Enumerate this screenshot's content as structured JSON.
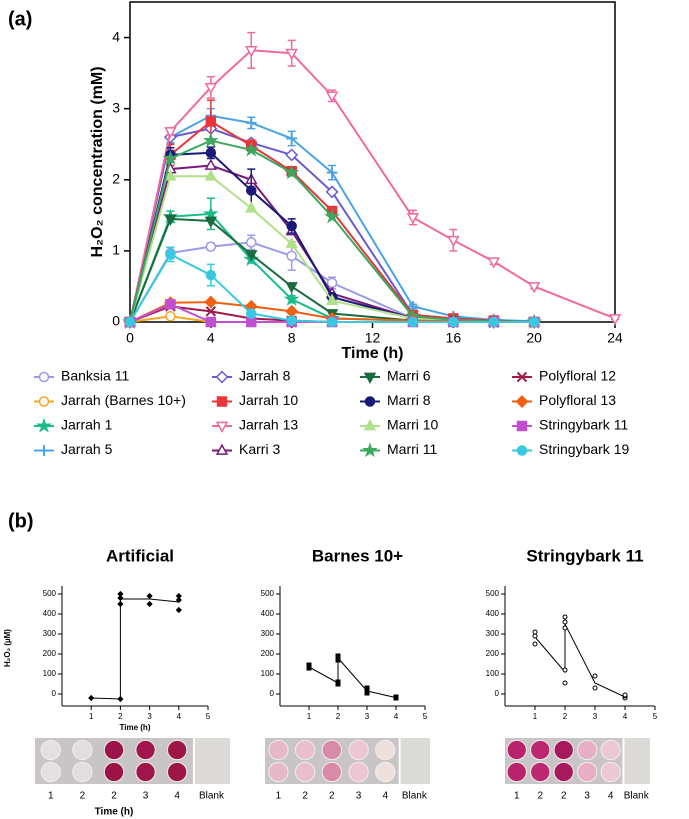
{
  "panel_labels": [
    "(a)",
    "(b)"
  ],
  "chart_data": [
    {
      "type": "line",
      "xlabel": "Time  (h)",
      "ylabel": "H₂O₂ concentration (mM)",
      "x": [
        0,
        2,
        4,
        6,
        8,
        10,
        14,
        16,
        18,
        20,
        24
      ],
      "xlim": [
        0,
        24
      ],
      "xticks": [
        0,
        4,
        8,
        12,
        16,
        20,
        24
      ],
      "ylim": [
        0,
        4.5
      ],
      "yticks": [
        0,
        1,
        2,
        3,
        4
      ],
      "series": [
        {
          "name": "Banksia 11",
          "color": "#9b9be8",
          "marker": "circle-open",
          "values": [
            0,
            0.97,
            1.06,
            1.12,
            0.93,
            0.55,
            0.05,
            0.02,
            0.01,
            0,
            null
          ],
          "errors": [
            0,
            0.08,
            0.05,
            0.1,
            0.2,
            0.08,
            0.02,
            0.01,
            0,
            0,
            null
          ]
        },
        {
          "name": "Jarrah (Barnes 10+)",
          "color": "#f5a623",
          "marker": "circle-open",
          "values": [
            0,
            0.08,
            0,
            0,
            0,
            0,
            0,
            0,
            0,
            0,
            null
          ]
        },
        {
          "name": "Jarrah 1",
          "color": "#1abc8c",
          "marker": "star",
          "values": [
            0,
            1.48,
            1.52,
            0.88,
            0.32,
            0.05,
            0.02,
            0.01,
            0,
            0,
            null
          ],
          "errors": [
            0,
            0.08,
            0.22,
            0.05,
            0.05,
            0.02,
            0,
            0,
            0,
            0,
            null
          ]
        },
        {
          "name": "Jarrah 5",
          "color": "#4aa3e8",
          "marker": "plus",
          "values": [
            0,
            2.6,
            2.9,
            2.8,
            2.58,
            2.1,
            0.22,
            0.08,
            0.03,
            0.01,
            null
          ],
          "errors": [
            0,
            0.08,
            0.1,
            0.08,
            0.1,
            0.1,
            0.03,
            0.02,
            0.01,
            0,
            null
          ]
        },
        {
          "name": "Jarrah 8",
          "color": "#6a5acd",
          "marker": "diamond-open",
          "values": [
            0,
            2.6,
            2.72,
            2.52,
            2.35,
            1.83,
            0.1,
            0.05,
            0.02,
            0,
            null
          ]
        },
        {
          "name": "Jarrah 10",
          "color": "#e8353a",
          "marker": "square",
          "values": [
            0,
            2.35,
            2.82,
            2.48,
            2.12,
            1.56,
            0.1,
            0.05,
            0.02,
            0,
            null
          ],
          "errors": [
            0,
            0.15,
            0.3,
            0.08,
            0.05,
            0.05,
            0.02,
            0.01,
            0,
            0,
            null
          ]
        },
        {
          "name": "Jarrah 13",
          "color": "#f06aa0",
          "marker": "triangle-down-open",
          "values": [
            0,
            2.68,
            3.3,
            3.82,
            3.78,
            3.18,
            1.47,
            1.15,
            0.85,
            0.5,
            0.05
          ],
          "errors": [
            0,
            0.05,
            0.15,
            0.25,
            0.18,
            0.08,
            0.1,
            0.15,
            0.04,
            0.03,
            0.01
          ]
        },
        {
          "name": "Karri 3",
          "color": "#7a1a7a",
          "marker": "triangle-up-open",
          "values": [
            0,
            2.15,
            2.2,
            2.0,
            1.28,
            0.4,
            0.05,
            0.02,
            0,
            0,
            null
          ]
        },
        {
          "name": "Marri 6",
          "color": "#1a6b40",
          "marker": "triangle-down",
          "values": [
            0,
            1.45,
            1.42,
            0.95,
            0.5,
            0.12,
            0.02,
            0.01,
            0,
            0,
            null
          ]
        },
        {
          "name": "Marri 8",
          "color": "#1a1a7a",
          "marker": "circle",
          "values": [
            0,
            2.35,
            2.38,
            1.85,
            1.35,
            0.35,
            0.05,
            0.02,
            0,
            0,
            null
          ],
          "errors": [
            0,
            0.1,
            0.08,
            0.3,
            0.1,
            0.05,
            0.01,
            0,
            0,
            0,
            null
          ]
        },
        {
          "name": "Marri 10",
          "color": "#b0e08a",
          "marker": "triangle-up",
          "values": [
            0,
            2.05,
            2.05,
            1.6,
            1.1,
            0.3,
            0.05,
            0.02,
            0,
            0,
            null
          ]
        },
        {
          "name": "Marri 11",
          "color": "#3aa860",
          "marker": "star",
          "values": [
            0,
            2.3,
            2.55,
            2.42,
            2.1,
            1.48,
            0.08,
            0.03,
            0.01,
            0,
            null
          ]
        },
        {
          "name": "Polyfloral 12",
          "color": "#a01a4a",
          "marker": "x",
          "values": [
            0,
            0.22,
            0.15,
            0.05,
            0.02,
            0,
            0,
            0,
            0,
            0,
            null
          ]
        },
        {
          "name": "Polyfloral 13",
          "color": "#f06010",
          "marker": "diamond",
          "values": [
            0,
            0.27,
            0.28,
            0.22,
            0.15,
            0.05,
            0.02,
            0.01,
            0,
            0,
            null
          ]
        },
        {
          "name": "Stringybark 11",
          "color": "#c050d0",
          "marker": "square",
          "values": [
            0,
            0.25,
            0,
            0,
            0,
            0,
            0,
            0,
            0,
            0,
            null
          ]
        },
        {
          "name": "Stringybark 19",
          "color": "#3ac8e0",
          "marker": "circle",
          "values": [
            0,
            0.95,
            0.66,
            0.12,
            0.02,
            0,
            0,
            0,
            0,
            0,
            null
          ],
          "errors": [
            0,
            0.1,
            0.15,
            0.03,
            0.01,
            0,
            0,
            0,
            0,
            0,
            null
          ]
        }
      ]
    },
    {
      "type": "scatter-line",
      "title": "Artificial",
      "ylabel": "H₂O₂ (µM)",
      "xlabel": "Time (h)",
      "xlim": [
        0,
        5
      ],
      "xticks": [
        1,
        2,
        3,
        4,
        5
      ],
      "ylim": [
        -60,
        520
      ],
      "yticks": [
        0,
        100,
        200,
        300,
        400,
        500
      ],
      "points": {
        "marker": "diamond",
        "x": [
          1,
          2,
          2,
          2,
          2,
          3,
          3,
          4,
          4,
          4
        ],
        "y": [
          -20,
          -25,
          450,
          480,
          500,
          450,
          490,
          420,
          470,
          490
        ]
      },
      "line": {
        "x": [
          1,
          2,
          2,
          3,
          4
        ],
        "y": [
          -20,
          -25,
          475,
          475,
          460
        ]
      }
    },
    {
      "type": "scatter-line",
      "title": "Barnes 10+",
      "xlim": [
        0,
        5
      ],
      "xticks": [
        1,
        2,
        3,
        4,
        5
      ],
      "ylim": [
        -60,
        520
      ],
      "yticks": [
        0,
        100,
        200,
        300,
        400,
        500
      ],
      "points": {
        "marker": "square",
        "x": [
          1,
          1,
          2,
          2,
          2,
          2,
          3,
          3,
          4,
          4
        ],
        "y": [
          130,
          145,
          50,
          60,
          170,
          190,
          5,
          30,
          -20,
          -15
        ]
      },
      "line": {
        "x": [
          1,
          2,
          2,
          3,
          4
        ],
        "y": [
          135,
          55,
          180,
          15,
          -18
        ]
      }
    },
    {
      "type": "scatter-line",
      "title": "Stringybark 11",
      "xlim": [
        0,
        5
      ],
      "xticks": [
        1,
        2,
        3,
        4,
        5
      ],
      "ylim": [
        -60,
        520
      ],
      "yticks": [
        0,
        100,
        200,
        300,
        400,
        500
      ],
      "points": {
        "marker": "circle-open",
        "x": [
          1,
          1,
          1,
          2,
          2,
          2,
          2,
          2,
          3,
          3,
          4,
          4,
          4
        ],
        "y": [
          250,
          290,
          310,
          55,
          120,
          330,
          360,
          385,
          30,
          90,
          -20,
          -10,
          -5
        ]
      },
      "line": {
        "x": [
          1,
          2,
          2,
          3,
          4
        ],
        "y": [
          285,
          110,
          350,
          55,
          -15
        ]
      }
    }
  ],
  "plates": [
    {
      "labels": [
        "1",
        "2",
        "2",
        "3",
        "4",
        "Blank"
      ],
      "xlabel": "Time (h)"
    },
    {
      "labels": [
        "1",
        "2",
        "2",
        "3",
        "4",
        "Blank"
      ]
    },
    {
      "labels": [
        "1",
        "2",
        "2",
        "3",
        "4",
        "Blank"
      ]
    }
  ]
}
